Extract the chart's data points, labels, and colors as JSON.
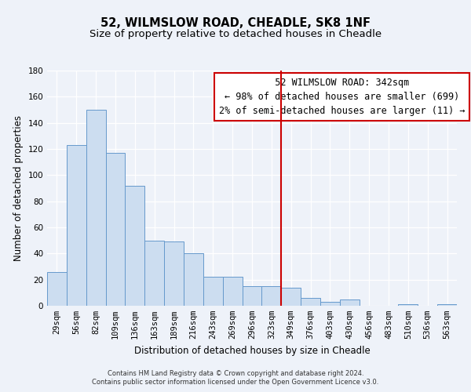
{
  "title": "52, WILMSLOW ROAD, CHEADLE, SK8 1NF",
  "subtitle": "Size of property relative to detached houses in Cheadle",
  "xlabel": "Distribution of detached houses by size in Cheadle",
  "ylabel": "Number of detached properties",
  "bin_labels": [
    "29sqm",
    "56sqm",
    "82sqm",
    "109sqm",
    "136sqm",
    "163sqm",
    "189sqm",
    "216sqm",
    "243sqm",
    "269sqm",
    "296sqm",
    "323sqm",
    "349sqm",
    "376sqm",
    "403sqm",
    "430sqm",
    "456sqm",
    "483sqm",
    "510sqm",
    "536sqm",
    "563sqm"
  ],
  "bar_values": [
    26,
    123,
    150,
    117,
    92,
    50,
    49,
    40,
    22,
    22,
    15,
    15,
    14,
    6,
    3,
    5,
    0,
    0,
    1,
    0,
    1
  ],
  "bar_color": "#ccddf0",
  "bar_edge_color": "#6699cc",
  "vline_index": 12,
  "vline_color": "#cc0000",
  "annotation_title": "52 WILMSLOW ROAD: 342sqm",
  "annotation_line1": "← 98% of detached houses are smaller (699)",
  "annotation_line2": "2% of semi-detached houses are larger (11) →",
  "annotation_box_color": "#ffffff",
  "annotation_border_color": "#cc0000",
  "ylim": [
    0,
    180
  ],
  "yticks": [
    0,
    20,
    40,
    60,
    80,
    100,
    120,
    140,
    160,
    180
  ],
  "footer_line1": "Contains HM Land Registry data © Crown copyright and database right 2024.",
  "footer_line2": "Contains public sector information licensed under the Open Government Licence v3.0.",
  "background_color": "#eef2f9",
  "grid_color": "#ffffff",
  "title_fontsize": 10.5,
  "subtitle_fontsize": 9.5,
  "axis_label_fontsize": 8.5,
  "tick_fontsize": 7.5,
  "annotation_fontsize": 8.5,
  "footer_fontsize": 6.0
}
